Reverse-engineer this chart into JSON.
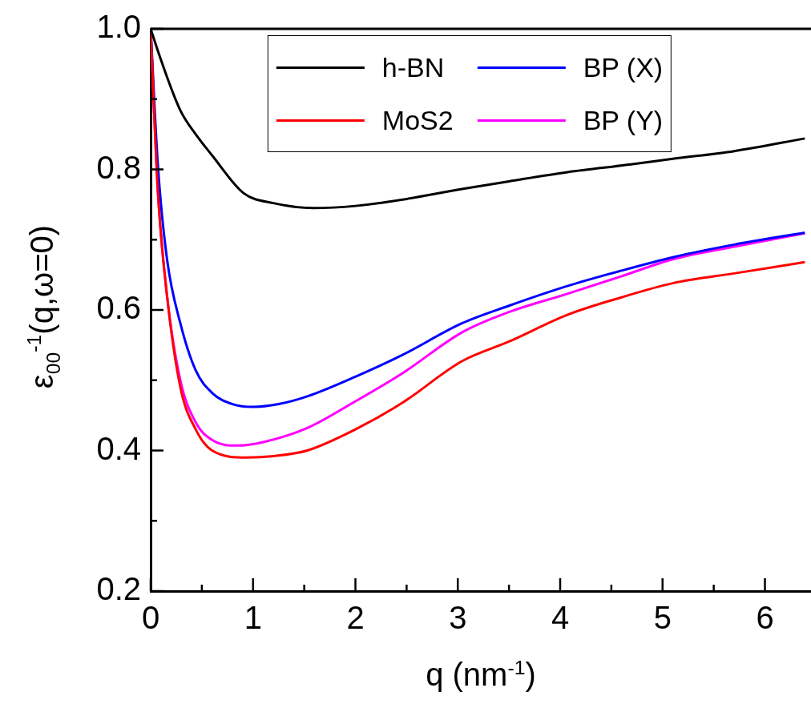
{
  "chart_data": {
    "type": "line",
    "xlabel": "q (nm$^{-1}$)",
    "ylabel": "ε$_{00}$$^{-1}$(q,ω=0)",
    "xlim": [
      0,
      6.45
    ],
    "xticks": [
      0,
      {
        "value": 0.5,
        "label": null
      },
      1,
      {
        "value": 1.5,
        "label": null
      },
      2,
      {
        "value": 2.5,
        "label": null
      },
      3,
      {
        "value": 3.5,
        "label": null
      },
      4,
      {
        "value": 4.5,
        "label": null
      },
      5,
      {
        "value": 5.5,
        "label": null
      },
      6
    ],
    "ylim": [
      0.2,
      1.0
    ],
    "yticks": [
      {
        "value": 0.2,
        "label": "0.2"
      },
      {
        "value": 0.3,
        "label": null
      },
      {
        "value": 0.4,
        "label": "0.4"
      },
      {
        "value": 0.5,
        "label": null
      },
      {
        "value": 0.6,
        "label": "0.6"
      },
      {
        "value": 0.7,
        "label": null
      },
      {
        "value": 0.8,
        "label": "0.8"
      },
      {
        "value": 0.9,
        "label": null
      },
      {
        "value": 1.0,
        "label": "1.0"
      }
    ],
    "grid": false,
    "legend": "top",
    "marker": "none",
    "line_style": "solid",
    "series": [
      {
        "name": "h-BN",
        "color": "#000000",
        "x": [
          0,
          0.1,
          0.29,
          0.45,
          0.6,
          0.91,
          1.2,
          1.59,
          2.0,
          2.46,
          3.04,
          3.5,
          4.07,
          4.69,
          5.1,
          5.7,
          6.39
        ],
        "values": [
          1,
          0.956,
          0.884,
          0.848,
          0.82,
          0.766,
          0.752,
          0.745,
          0.748,
          0.757,
          0.772,
          0.783,
          0.796,
          0.807,
          0.815,
          0.826,
          0.844
        ]
      },
      {
        "name": "MoS2",
        "color": "#ff0000",
        "x": [
          0,
          0.07,
          0.16,
          0.29,
          0.44,
          0.6,
          0.94,
          1.2,
          1.53,
          2.0,
          2.46,
          3.04,
          3.5,
          4.07,
          4.6,
          5.1,
          5.7,
          6.39
        ],
        "values": [
          1,
          0.77,
          0.62,
          0.49,
          0.43,
          0.4,
          0.39,
          0.392,
          0.4,
          0.43,
          0.468,
          0.527,
          0.555,
          0.593,
          0.618,
          0.638,
          0.652,
          0.668
        ]
      },
      {
        "name": "BP (X)",
        "color": "#0000ff",
        "x": [
          0,
          0.07,
          0.16,
          0.29,
          0.44,
          0.6,
          0.8,
          1.0,
          1.25,
          1.53,
          2.0,
          2.46,
          3.04,
          3.5,
          4.07,
          4.6,
          5.1,
          5.7,
          6.39
        ],
        "values": [
          1,
          0.807,
          0.672,
          0.581,
          0.514,
          0.482,
          0.466,
          0.462,
          0.466,
          0.477,
          0.505,
          0.536,
          0.581,
          0.606,
          0.634,
          0.656,
          0.675,
          0.693,
          0.71
        ]
      },
      {
        "name": "BP (Y)",
        "color": "#ff00ff",
        "x": [
          0,
          0.07,
          0.16,
          0.29,
          0.44,
          0.6,
          0.85,
          1.1,
          1.53,
          2.0,
          2.46,
          3.04,
          3.5,
          4.07,
          4.6,
          5.1,
          5.7,
          6.39
        ],
        "values": [
          1,
          0.77,
          0.62,
          0.5,
          0.44,
          0.415,
          0.407,
          0.412,
          0.432,
          0.47,
          0.51,
          0.568,
          0.597,
          0.623,
          0.648,
          0.672,
          0.69,
          0.709
        ]
      }
    ]
  }
}
